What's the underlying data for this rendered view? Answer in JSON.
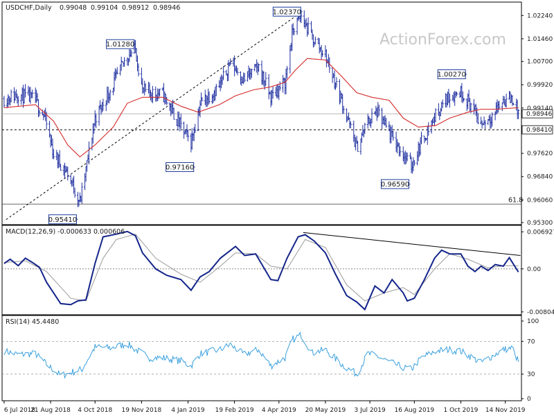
{
  "watermark": "ActionForex.com",
  "colors": {
    "bars": "#1f2fa0",
    "sma": "#d42a2a",
    "macd": "#13248a",
    "signal": "#9a9a9a",
    "rsi": "#3aa0de",
    "trend": "#000000",
    "bg": "#ffffff"
  },
  "chart_data": [
    {
      "type": "ohlc",
      "title": "USDCHF,Daily",
      "header_values": [
        "0.99048",
        "0.99104",
        "0.98912",
        "0.98946"
      ],
      "y_ticks": [
        "1.02240",
        "1.01460",
        "1.00700",
        "0.99920",
        "0.99140",
        "0.98360",
        "0.97620",
        "0.96840",
        "0.96060",
        "0.95300"
      ],
      "y_tick_values": [
        1.0224,
        1.0146,
        1.007,
        0.9992,
        0.9914,
        0.9836,
        0.9762,
        0.9684,
        0.9606,
        0.953
      ],
      "ylim": [
        0.953,
        1.0262
      ],
      "current_price": "0.98946",
      "support_level": "0.98410",
      "fib_level_label": "61.8",
      "fib_level_value": 0.9592,
      "callouts": [
        {
          "label": "0.95410",
          "value": 0.9541
        },
        {
          "label": "1.01280",
          "value": 1.0128
        },
        {
          "label": "0.97160",
          "value": 0.9716
        },
        {
          "label": "1.02370",
          "value": 1.0237
        },
        {
          "label": "0.96590",
          "value": 0.9659
        },
        {
          "label": "1.00270",
          "value": 1.0027
        }
      ],
      "price_path": [
        [
          "2018-07-06",
          0.9945
        ],
        [
          "2018-07-20",
          0.996
        ],
        [
          "2018-08-06",
          0.994
        ],
        [
          "2018-08-15",
          0.9885
        ],
        [
          "2018-08-24",
          0.976
        ],
        [
          "2018-09-07",
          0.9695
        ],
        [
          "2018-09-19",
          0.96
        ],
        [
          "2018-09-21",
          0.963
        ],
        [
          "2018-10-04",
          0.988
        ],
        [
          "2018-10-20",
          0.998
        ],
        [
          "2018-11-05",
          1.009
        ],
        [
          "2018-11-13",
          1.011
        ],
        [
          "2018-11-20",
          0.997
        ],
        [
          "2018-12-10",
          0.996
        ],
        [
          "2018-12-28",
          0.985
        ],
        [
          "2019-01-07",
          0.98
        ],
        [
          "2019-01-16",
          0.993
        ],
        [
          "2019-02-05",
          0.999
        ],
        [
          "2019-02-15",
          1.007
        ],
        [
          "2019-02-28",
          1.001
        ],
        [
          "2019-03-15",
          1.005
        ],
        [
          "2019-03-27",
          0.995
        ],
        [
          "2019-04-10",
          1.0
        ],
        [
          "2019-04-18",
          1.018
        ],
        [
          "2019-04-26",
          1.022
        ],
        [
          "2019-05-07",
          1.015
        ],
        [
          "2019-05-20",
          1.009
        ],
        [
          "2019-06-05",
          0.994
        ],
        [
          "2019-06-20",
          0.978
        ],
        [
          "2019-07-01",
          0.987
        ],
        [
          "2019-07-10",
          0.99
        ],
        [
          "2019-07-22",
          0.983
        ],
        [
          "2019-08-05",
          0.976
        ],
        [
          "2019-08-13",
          0.972
        ],
        [
          "2019-08-23",
          0.98
        ],
        [
          "2019-09-06",
          0.989
        ],
        [
          "2019-09-18",
          0.995
        ],
        [
          "2019-10-01",
          0.997
        ],
        [
          "2019-10-10",
          0.993
        ],
        [
          "2019-10-21",
          0.986
        ],
        [
          "2019-11-01",
          0.989
        ],
        [
          "2019-11-12",
          0.994
        ],
        [
          "2019-11-21",
          0.9945
        ],
        [
          "2019-11-27",
          0.9895
        ]
      ],
      "sma_path": [
        [
          "2018-07-06",
          0.9915
        ],
        [
          "2018-08-06",
          0.9925
        ],
        [
          "2018-08-24",
          0.987
        ],
        [
          "2018-09-07",
          0.979
        ],
        [
          "2018-09-19",
          0.975
        ],
        [
          "2018-10-04",
          0.979
        ],
        [
          "2018-10-22",
          0.985
        ],
        [
          "2018-11-05",
          0.993
        ],
        [
          "2018-11-20",
          0.995
        ],
        [
          "2018-12-10",
          0.995
        ],
        [
          "2018-12-28",
          0.992
        ],
        [
          "2019-01-14",
          0.99
        ],
        [
          "2019-02-04",
          0.9925
        ],
        [
          "2019-02-20",
          0.9955
        ],
        [
          "2019-03-10",
          0.9975
        ],
        [
          "2019-03-27",
          0.9985
        ],
        [
          "2019-04-10",
          1.0
        ],
        [
          "2019-04-20",
          1.004
        ],
        [
          "2019-05-02",
          1.008
        ],
        [
          "2019-05-20",
          1.0075
        ],
        [
          "2019-06-05",
          1.002
        ],
        [
          "2019-06-20",
          0.9965
        ],
        [
          "2019-07-05",
          0.995
        ],
        [
          "2019-07-22",
          0.994
        ],
        [
          "2019-08-05",
          0.988
        ],
        [
          "2019-08-20",
          0.985
        ],
        [
          "2019-09-06",
          0.9855
        ],
        [
          "2019-09-20",
          0.988
        ],
        [
          "2019-10-08",
          0.99
        ],
        [
          "2019-10-21",
          0.991
        ],
        [
          "2019-11-05",
          0.991
        ],
        [
          "2019-11-27",
          0.9915
        ]
      ]
    },
    {
      "type": "line",
      "title": "MACD(12,26,9) -0.000633 0.000606",
      "y_ticks": [
        "0.006927",
        "0.00",
        "-0.008049"
      ],
      "y_tick_values": [
        0.006927,
        0,
        -0.008049
      ],
      "ylim": [
        -0.0082,
        0.0075
      ],
      "macd_path": [
        [
          "2018-07-06",
          0.001
        ],
        [
          "2018-07-12",
          0.0018
        ],
        [
          "2018-07-20",
          0.0006
        ],
        [
          "2018-07-27",
          0.002
        ],
        [
          "2018-08-03",
          0.0012
        ],
        [
          "2018-08-10",
          0.0003
        ],
        [
          "2018-08-17",
          -0.0025
        ],
        [
          "2018-08-31",
          -0.0065
        ],
        [
          "2018-09-10",
          -0.0067
        ],
        [
          "2018-09-17",
          -0.006
        ],
        [
          "2018-09-25",
          -0.0058
        ],
        [
          "2018-10-04",
          0.001
        ],
        [
          "2018-10-12",
          0.006
        ],
        [
          "2018-10-25",
          0.0065
        ],
        [
          "2018-11-05",
          0.007
        ],
        [
          "2018-11-13",
          0.0062
        ],
        [
          "2018-11-20",
          0.003
        ],
        [
          "2018-12-03",
          0.0
        ],
        [
          "2018-12-14",
          -0.0012
        ],
        [
          "2018-12-28",
          -0.002
        ],
        [
          "2019-01-07",
          -0.004
        ],
        [
          "2019-01-16",
          -0.0015
        ],
        [
          "2019-01-25",
          -0.0005
        ],
        [
          "2019-02-05",
          0.002
        ],
        [
          "2019-02-20",
          0.0042
        ],
        [
          "2019-03-01",
          0.0025
        ],
        [
          "2019-03-12",
          0.0028
        ],
        [
          "2019-03-27",
          -0.002
        ],
        [
          "2019-04-03",
          -0.0022
        ],
        [
          "2019-04-12",
          0.002
        ],
        [
          "2019-04-23",
          0.006
        ],
        [
          "2019-04-30",
          0.0064
        ],
        [
          "2019-05-09",
          0.0052
        ],
        [
          "2019-05-20",
          0.003
        ],
        [
          "2019-05-30",
          -0.001
        ],
        [
          "2019-06-10",
          -0.005
        ],
        [
          "2019-06-20",
          -0.0062
        ],
        [
          "2019-06-28",
          -0.0076
        ],
        [
          "2019-07-08",
          -0.0032
        ],
        [
          "2019-07-17",
          -0.0045
        ],
        [
          "2019-07-25",
          -0.002
        ],
        [
          "2019-08-05",
          -0.0045
        ],
        [
          "2019-08-09",
          -0.006
        ],
        [
          "2019-08-16",
          -0.0055
        ],
        [
          "2019-08-26",
          -0.002
        ],
        [
          "2019-09-05",
          0.002
        ],
        [
          "2019-09-12",
          0.0035
        ],
        [
          "2019-09-20",
          0.0028
        ],
        [
          "2019-10-01",
          0.0028
        ],
        [
          "2019-10-08",
          0.0005
        ],
        [
          "2019-10-15",
          -0.0005
        ],
        [
          "2019-10-21",
          0.0005
        ],
        [
          "2019-10-28",
          -0.0003
        ],
        [
          "2019-11-04",
          0.0008
        ],
        [
          "2019-11-12",
          0.0005
        ],
        [
          "2019-11-18",
          0.0021
        ],
        [
          "2019-11-27",
          -0.0006
        ]
      ],
      "signal_path": [
        [
          "2018-07-06",
          0.0012
        ],
        [
          "2018-07-27",
          0.0015
        ],
        [
          "2018-08-17",
          -0.0005
        ],
        [
          "2018-09-10",
          -0.0055
        ],
        [
          "2018-09-25",
          -0.006
        ],
        [
          "2018-10-12",
          0.002
        ],
        [
          "2018-10-25",
          0.0055
        ],
        [
          "2018-11-13",
          0.0065
        ],
        [
          "2018-12-03",
          0.002
        ],
        [
          "2018-12-28",
          -0.001
        ],
        [
          "2019-01-16",
          -0.0025
        ],
        [
          "2019-02-05",
          0.0005
        ],
        [
          "2019-02-20",
          0.003
        ],
        [
          "2019-03-12",
          0.0028
        ],
        [
          "2019-03-27",
          0.0005
        ],
        [
          "2019-04-12",
          0.0
        ],
        [
          "2019-04-30",
          0.0055
        ],
        [
          "2019-05-20",
          0.004
        ],
        [
          "2019-06-10",
          -0.003
        ],
        [
          "2019-06-28",
          -0.006
        ],
        [
          "2019-07-17",
          -0.0045
        ],
        [
          "2019-08-05",
          -0.0035
        ],
        [
          "2019-08-16",
          -0.0048
        ],
        [
          "2019-09-05",
          0.0
        ],
        [
          "2019-09-20",
          0.0028
        ],
        [
          "2019-10-08",
          0.0018
        ],
        [
          "2019-10-28",
          0.0002
        ],
        [
          "2019-11-12",
          0.0006
        ],
        [
          "2019-11-27",
          0.0006
        ]
      ],
      "trendline": [
        [
          "2019-04-28",
          0.0068
        ],
        [
          "2019-11-29",
          0.0025
        ]
      ]
    },
    {
      "type": "line",
      "title": "RSI(14) 45.4480",
      "y_ticks": [
        "100",
        "70",
        "30",
        "0"
      ],
      "y_tick_values": [
        100,
        70,
        30,
        0
      ],
      "ylim": [
        0,
        100
      ],
      "rsi_path": [
        [
          "2018-07-06",
          58
        ],
        [
          "2018-07-20",
          54
        ],
        [
          "2018-08-06",
          55
        ],
        [
          "2018-08-17",
          42
        ],
        [
          "2018-08-31",
          28
        ],
        [
          "2018-09-10",
          32
        ],
        [
          "2018-09-21",
          36
        ],
        [
          "2018-10-04",
          63
        ],
        [
          "2018-10-20",
          62
        ],
        [
          "2018-11-05",
          67
        ],
        [
          "2018-11-13",
          60
        ],
        [
          "2018-11-27",
          50
        ],
        [
          "2018-12-10",
          50
        ],
        [
          "2018-12-28",
          46
        ],
        [
          "2019-01-07",
          40
        ],
        [
          "2019-01-16",
          55
        ],
        [
          "2019-02-05",
          60
        ],
        [
          "2019-02-15",
          66
        ],
        [
          "2019-02-28",
          54
        ],
        [
          "2019-03-15",
          60
        ],
        [
          "2019-03-27",
          40
        ],
        [
          "2019-04-10",
          50
        ],
        [
          "2019-04-18",
          73
        ],
        [
          "2019-04-26",
          78
        ],
        [
          "2019-05-07",
          56
        ],
        [
          "2019-05-20",
          60
        ],
        [
          "2019-06-05",
          42
        ],
        [
          "2019-06-20",
          30
        ],
        [
          "2019-07-01",
          55
        ],
        [
          "2019-07-10",
          52
        ],
        [
          "2019-07-22",
          45
        ],
        [
          "2019-08-05",
          38
        ],
        [
          "2019-08-13",
          36
        ],
        [
          "2019-08-23",
          50
        ],
        [
          "2019-09-06",
          58
        ],
        [
          "2019-09-18",
          60
        ],
        [
          "2019-10-01",
          58
        ],
        [
          "2019-10-10",
          52
        ],
        [
          "2019-10-21",
          44
        ],
        [
          "2019-11-01",
          52
        ],
        [
          "2019-11-12",
          60
        ],
        [
          "2019-11-21",
          62
        ],
        [
          "2019-11-27",
          45
        ]
      ]
    }
  ],
  "x_ticks": [
    "6 Jul 2018",
    "21 Aug 2018",
    "4 Oct 2018",
    "19 Nov 2018",
    "4 Jan 2019",
    "19 Feb 2019",
    "4 Apr 2019",
    "20 May 2019",
    "3 Jul 2019",
    "16 Aug 2019",
    "1 Oct 2019",
    "14 Nov 2019"
  ],
  "x_tick_dates": [
    "2018-07-06",
    "2018-08-21",
    "2018-10-04",
    "2018-11-19",
    "2019-01-04",
    "2019-02-19",
    "2019-04-04",
    "2019-05-20",
    "2019-07-03",
    "2019-08-16",
    "2019-10-01",
    "2019-11-14"
  ]
}
